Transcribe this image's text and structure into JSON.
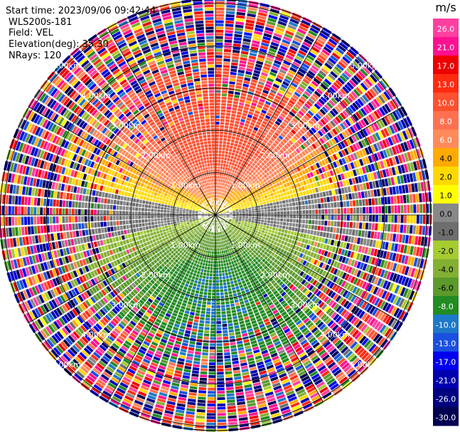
{
  "info": {
    "start_time": "Start time: 2023/09/06 09:42:44",
    "station": "WLS200s-181",
    "field": "Field: VEL",
    "elevation": "Elevation(deg): 35.30",
    "nrays": "NRays: 120"
  },
  "chart_data": {
    "type": "heatmap",
    "projection": "polar-ppi",
    "field": "VEL",
    "units": "m/s",
    "elevation_deg": 35.3,
    "n_rays": 120,
    "range_rings_km": [
      1,
      2,
      3,
      4,
      5
    ],
    "ring_labels": [
      "1.00km",
      "2.00km",
      "3.00km",
      "4.00km",
      "5.00km"
    ],
    "max_range_km": 5.1,
    "valid_range_km": 3.4,
    "velocity_pattern": {
      "toward_north_ms": 12,
      "toward_south_ms": -8,
      "east_west_ms": 0
    },
    "colorbar": {
      "unit": "m/s",
      "ticks": [
        "26.0",
        "21.0",
        "17.0",
        "13.0",
        "10.0",
        "8.0",
        "6.0",
        "4.0",
        "2.0",
        "1.0",
        "0.0",
        "-1.0",
        "-2.0",
        "-4.0",
        "-6.0",
        "-8.0",
        "-10.0",
        "-13.0",
        "-17.0",
        "-21.0",
        "-26.0",
        "-30.0"
      ],
      "bins": [
        {
          "min": 26,
          "max": 30,
          "color": "#ff3fa0"
        },
        {
          "min": 21,
          "max": 26,
          "color": "#ff1090"
        },
        {
          "min": 17,
          "max": 21,
          "color": "#ee0000"
        },
        {
          "min": 13,
          "max": 17,
          "color": "#ff2a10"
        },
        {
          "min": 10,
          "max": 13,
          "color": "#ff5030"
        },
        {
          "min": 8,
          "max": 10,
          "color": "#ff7050"
        },
        {
          "min": 6,
          "max": 8,
          "color": "#ff8a5a"
        },
        {
          "min": 4,
          "max": 6,
          "color": "#ffaa00"
        },
        {
          "min": 2,
          "max": 4,
          "color": "#ffd800"
        },
        {
          "min": 1,
          "max": 2,
          "color": "#ffff00"
        },
        {
          "min": 0,
          "max": 1,
          "color": "#888888"
        },
        {
          "min": -1,
          "max": 0,
          "color": "#6e6e6e"
        },
        {
          "min": -2,
          "max": -1,
          "color": "#a6cc30"
        },
        {
          "min": -4,
          "max": -2,
          "color": "#84b032"
        },
        {
          "min": -6,
          "max": -4,
          "color": "#5c9a2c"
        },
        {
          "min": -8,
          "max": -6,
          "color": "#228b22"
        },
        {
          "min": -10,
          "max": -8,
          "color": "#1e78c8"
        },
        {
          "min": -13,
          "max": -10,
          "color": "#1a50e0"
        },
        {
          "min": -17,
          "max": -13,
          "color": "#0000ee"
        },
        {
          "min": -21,
          "max": -17,
          "color": "#0000b0"
        },
        {
          "min": -26,
          "max": -21,
          "color": "#000080"
        },
        {
          "min": -30,
          "max": -26,
          "color": "#000050"
        }
      ]
    }
  }
}
